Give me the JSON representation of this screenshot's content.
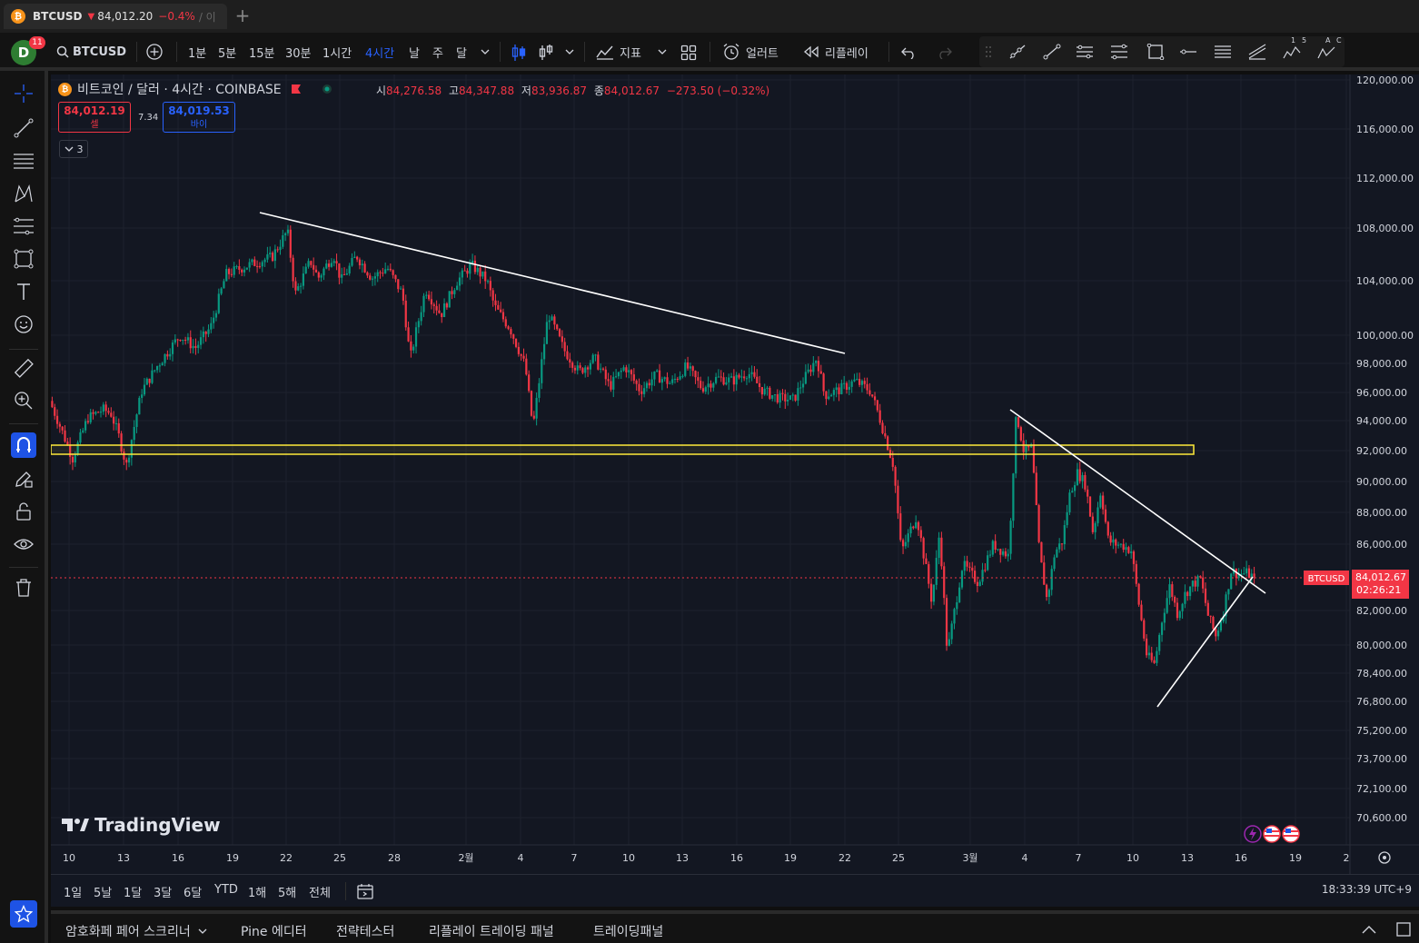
{
  "browser": {
    "tab_symbol": "BTCUSD",
    "tab_price": "84,012.20",
    "tab_change": "−0.4%",
    "tab_extra": "/ 이",
    "new_tab": "+"
  },
  "toolbar": {
    "avatar_letter": "D",
    "notifications": "11",
    "symbol": "BTCUSD",
    "timeframes": [
      "1분",
      "5분",
      "15분",
      "30분",
      "1시간",
      "4시간",
      "날",
      "주",
      "달"
    ],
    "active_timeframe": "4시간",
    "indicators_label": "지표",
    "alert_label": "얼러트",
    "replay_label": "리플레이",
    "tool_numbers": [
      "1",
      "5"
    ],
    "tool_letters": [
      "A",
      "C"
    ]
  },
  "chart_header": {
    "coin_letter": "₿",
    "title": "비트코인 / 달러 · 4시간 · COINBASE",
    "open_label": "시",
    "open": "84,276.58",
    "high_label": "고",
    "high": "84,347.88",
    "low_label": "저",
    "low": "83,936.87",
    "close_label": "종",
    "close": "84,012.67",
    "change": "−273.50 (−0.32%)",
    "sell_price": "84,012.19",
    "sell_label": "셀",
    "buy_price": "84,019.53",
    "buy_label": "바이",
    "spread": "7.34",
    "indicator_count": "3"
  },
  "colors": {
    "up": "#089981",
    "down": "#f23645",
    "background": "#131722",
    "trendline": "#ffffff",
    "zone": "#ffeb3b",
    "accent": "#2962ff"
  },
  "chart_data": {
    "type": "candlestick",
    "symbol": "BTCUSD",
    "interval": "4H",
    "y_ticks": [
      "120,000.00",
      "116,000.00",
      "112,000.00",
      "108,000.00",
      "104,000.00",
      "100,000.00",
      "98,000.00",
      "96,000.00",
      "94,000.00",
      "92,000.00",
      "90,000.00",
      "88,000.00",
      "86,000.00",
      "82,000.00",
      "80,000.00",
      "78,400.00",
      "76,800.00",
      "75,200.00",
      "73,700.00",
      "72,100.00",
      "70,600.00"
    ],
    "x_ticks": [
      "10",
      "13",
      "16",
      "19",
      "22",
      "25",
      "28",
      "2월",
      "4",
      "7",
      "10",
      "13",
      "16",
      "19",
      "22",
      "25",
      "3월",
      "4",
      "7",
      "10",
      "13",
      "16",
      "19",
      "2"
    ],
    "price_path": [
      [
        0,
        95400
      ],
      [
        3,
        91500
      ],
      [
        5,
        94200
      ],
      [
        7,
        94800
      ],
      [
        8,
        94500
      ],
      [
        9,
        93000
      ],
      [
        10,
        91000
      ],
      [
        12,
        96100
      ],
      [
        14,
        97800
      ],
      [
        17,
        100000
      ],
      [
        19,
        99100
      ],
      [
        21,
        100600
      ],
      [
        23,
        104500
      ],
      [
        26,
        105200
      ],
      [
        29,
        105800
      ],
      [
        31,
        107800
      ],
      [
        32,
        103000
      ],
      [
        34,
        105500
      ],
      [
        35,
        104200
      ],
      [
        37,
        106000
      ],
      [
        38,
        104000
      ],
      [
        40,
        105900
      ],
      [
        42,
        104200
      ],
      [
        44,
        105000
      ],
      [
        46,
        103000
      ],
      [
        47,
        98300
      ],
      [
        49,
        103400
      ],
      [
        51,
        101500
      ],
      [
        53,
        103900
      ],
      [
        55,
        105200
      ],
      [
        57,
        104000
      ],
      [
        58,
        102100
      ],
      [
        60,
        100500
      ],
      [
        62,
        97800
      ],
      [
        63,
        93500
      ],
      [
        65,
        101600
      ],
      [
        67,
        99000
      ],
      [
        69,
        97400
      ],
      [
        71,
        98400
      ],
      [
        73,
        96400
      ],
      [
        75,
        97800
      ],
      [
        77,
        96100
      ],
      [
        79,
        97200
      ],
      [
        81,
        96600
      ],
      [
        83,
        97800
      ],
      [
        85,
        96300
      ],
      [
        87,
        97000
      ],
      [
        89,
        96800
      ],
      [
        91,
        97400
      ],
      [
        93,
        96100
      ],
      [
        95,
        95600
      ],
      [
        97,
        95500
      ],
      [
        98,
        96600
      ],
      [
        100,
        98400
      ],
      [
        101,
        95800
      ],
      [
        103,
        96200
      ],
      [
        105,
        96800
      ],
      [
        107,
        96100
      ],
      [
        108,
        94500
      ],
      [
        110,
        91000
      ],
      [
        111,
        85500
      ],
      [
        113,
        87800
      ],
      [
        115,
        82500
      ],
      [
        116,
        86800
      ],
      [
        117,
        79500
      ],
      [
        119,
        84800
      ],
      [
        121,
        83700
      ],
      [
        123,
        86000
      ],
      [
        125,
        85300
      ],
      [
        126,
        94500
      ],
      [
        127,
        91900
      ],
      [
        128,
        92200
      ],
      [
        129,
        85500
      ],
      [
        130,
        82600
      ],
      [
        131,
        85500
      ],
      [
        132,
        86200
      ],
      [
        133,
        89300
      ],
      [
        134,
        90600
      ],
      [
        135,
        89800
      ],
      [
        136,
        86700
      ],
      [
        137,
        89400
      ],
      [
        138,
        86200
      ],
      [
        139,
        86000
      ],
      [
        140,
        85900
      ],
      [
        141,
        85600
      ],
      [
        142,
        82300
      ],
      [
        143,
        79400
      ],
      [
        144,
        78900
      ],
      [
        145,
        81500
      ],
      [
        146,
        83500
      ],
      [
        147,
        81800
      ],
      [
        148,
        83000
      ],
      [
        149,
        83600
      ],
      [
        150,
        83900
      ],
      [
        151,
        81700
      ],
      [
        152,
        80500
      ],
      [
        153,
        82000
      ],
      [
        154,
        84400
      ],
      [
        155,
        84200
      ],
      [
        156,
        84250
      ],
      [
        157,
        84012
      ]
    ],
    "annotations": {
      "descending_trendline_1": {
        "from": "~108,800 (Jan 20)",
        "to": "~98,800 (Feb 22)"
      },
      "descending_trendline_2": {
        "from": "~94,800 (Mar 3)",
        "to": "~83,400 (Mar 18)"
      },
      "ascending_trendline": {
        "from": "~76,700 (Mar 11)",
        "to": "~84,300 (Mar 17)"
      },
      "support_zone": {
        "low": 91850,
        "high": 92450
      }
    },
    "last_price_tag": {
      "symbol": "BTCUSD",
      "price": "84,012.67",
      "countdown": "02:26:21"
    }
  },
  "watermark": "TradingView",
  "range_bar": {
    "ranges": [
      "1일",
      "5날",
      "1달",
      "3달",
      "6달",
      "YTD",
      "1해",
      "5해",
      "전체"
    ],
    "clock": "18:33:39 UTC+9"
  },
  "bottom_panel": {
    "tabs": [
      "암호화페 페어 스크리너",
      "Pine 에디터",
      "전략테스터",
      "리플레이 트레이딩 패널",
      "트레이딩패널"
    ]
  }
}
